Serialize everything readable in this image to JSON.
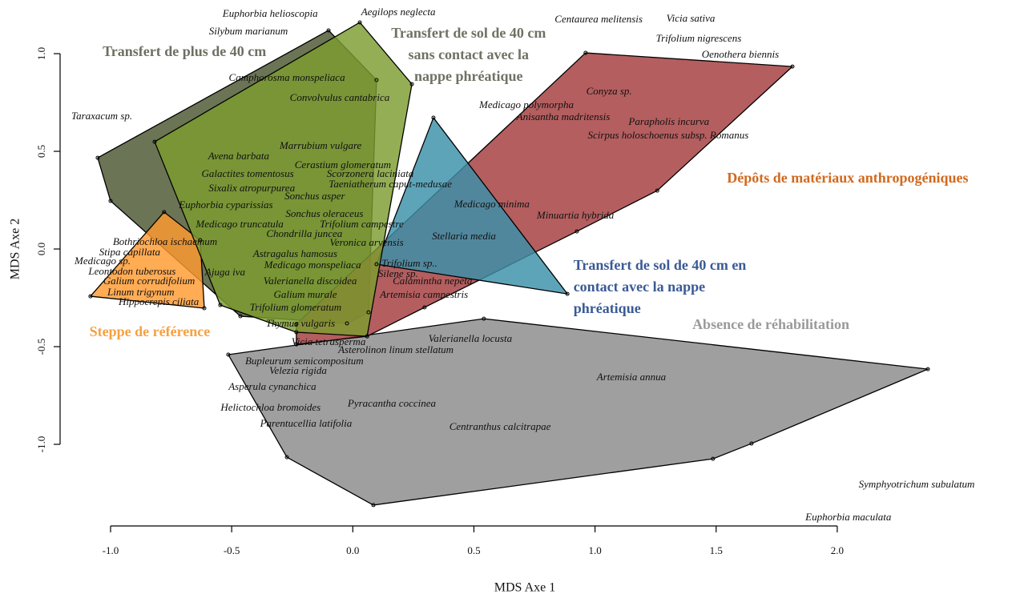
{
  "chart_data": {
    "type": "ordination",
    "x_label": "MDS Axe 1",
    "y_label": "MDS Axe 2",
    "xlim": [
      -1.21,
      2.65
    ],
    "ylim": [
      -1.39,
      1.23
    ],
    "xticks": [
      {
        "value": -1.0,
        "label": "-1.0"
      },
      -0.5,
      {
        "value": 0.0,
        "label": "0.0"
      },
      0.5,
      {
        "value": 1.0,
        "label": "1.0"
      },
      1.5,
      {
        "value": 2.0,
        "label": "2.0"
      }
    ],
    "yticks": [
      {
        "value": -1.0,
        "label": "-1.0"
      },
      -0.5,
      {
        "value": 0.0,
        "label": "0.0"
      },
      0.5,
      {
        "value": 1.0,
        "label": "1.0"
      }
    ],
    "groups": [
      {
        "label": [
          "Absence de réhabilitation"
        ],
        "color": "#8a8a8a",
        "label_color": "#9a9a9a",
        "label_x": 1.726,
        "label_y": -0.393,
        "anchor": "middle",
        "hull_x": [
          -0.514,
          0.541,
          2.374,
          1.646,
          1.487,
          0.085,
          -0.272
        ],
        "hull_y": [
          -0.541,
          -0.357,
          -0.615,
          -0.996,
          -1.074,
          -1.311,
          -1.066
        ]
      },
      {
        "label": [
          "Transfert de plus de 40 cm"
        ],
        "color": "#4a5530",
        "label_color": "#6e6e62",
        "label_x": -0.695,
        "label_y": 1.004,
        "anchor": "middle",
        "hull_x": [
          -1.053,
          -0.1,
          0.098,
          0.065,
          -0.024,
          -0.464,
          -1.0
        ],
        "hull_y": [
          0.467,
          1.119,
          0.865,
          -0.324,
          -0.381,
          -0.344,
          0.246
        ]
      },
      {
        "label": [
          "Steppe de référence"
        ],
        "color": "#ff9a30",
        "label_color": "#f7a040",
        "label_x": -0.838,
        "label_y": -0.43,
        "anchor": "middle",
        "hull_x": [
          -1.083,
          -0.779,
          -0.63,
          -0.613
        ],
        "hull_y": [
          -0.242,
          0.189,
          0.045,
          -0.303
        ]
      },
      {
        "label": [
          "Dépôts de matériaux anthropogéniques"
        ],
        "color": "#a33a3c",
        "label_color": "#d2691e",
        "label_x": 2.043,
        "label_y": 0.357,
        "anchor": "middle",
        "hull_x": [
          0.961,
          1.815,
          1.257,
          0.925,
          0.296,
          0.059,
          -0.233,
          -0.233
        ],
        "hull_y": [
          1.004,
          0.934,
          0.299,
          0.09,
          -0.299,
          -0.447,
          -0.488,
          -0.385
        ]
      },
      {
        "label": [
          "Transfert de sol de 40 cm en",
          "contact avec la nappe",
          "phréatique"
        ],
        "color": "#3b90aa",
        "label_color": "#3a5a95",
        "label_x": 0.911,
        "label_y": -0.09,
        "anchor": "start",
        "hull_x": [
          0.333,
          0.886,
          0.098
        ],
        "hull_y": [
          0.672,
          -0.23,
          -0.078
        ]
      },
      {
        "label": [
          "Transfert de sol de 40 cm",
          "sans contact avec la",
          "nappe phréatique"
        ],
        "color": "#7c9c30",
        "label_color": "#707064",
        "label_x": 0.478,
        "label_y": 1.098,
        "anchor": "middle",
        "hull_x": [
          -0.818,
          0.029,
          0.244,
          0.059,
          -0.233,
          -0.547
        ],
        "hull_y": [
          0.549,
          1.16,
          0.844,
          -0.447,
          -0.426,
          -0.287
        ]
      }
    ],
    "species": [
      {
        "name": "Euphorbia helioscopia",
        "x": -0.341,
        "y": 1.201
      },
      {
        "name": "Aegilops neglecta",
        "x": 0.188,
        "y": 1.209
      },
      {
        "name": "Silybum marianum",
        "x": -0.431,
        "y": 1.111
      },
      {
        "name": "Centaurea melitensis",
        "x": 1.015,
        "y": 1.172
      },
      {
        "name": "Vicia sativa",
        "x": 1.395,
        "y": 1.176
      },
      {
        "name": "Trifolium nigrescens",
        "x": 1.428,
        "y": 1.074
      },
      {
        "name": "Oenothera biennis",
        "x": 1.6,
        "y": 0.992
      },
      {
        "name": "Camphorosma monspeliaca",
        "x": -0.272,
        "y": 0.873
      },
      {
        "name": "Convolvulus cantabrica",
        "x": -0.054,
        "y": 0.77
      },
      {
        "name": "Taraxacum sp.",
        "x": -1.036,
        "y": 0.676
      },
      {
        "name": "Medicago polymorpha",
        "x": 0.717,
        "y": 0.734
      },
      {
        "name": "Conyza sp.",
        "x": 1.058,
        "y": 0.803
      },
      {
        "name": "Anisantha madritensis",
        "x": 0.869,
        "y": 0.672
      },
      {
        "name": "Parapholis incurva",
        "x": 1.305,
        "y": 0.648
      },
      {
        "name": "Marrubium vulgare",
        "x": -0.133,
        "y": 0.525
      },
      {
        "name": "Scirpus holoschoenus subsp. Romanus",
        "x": 1.302,
        "y": 0.578
      },
      {
        "name": "Avena barbata",
        "x": -0.471,
        "y": 0.471
      },
      {
        "name": "Cerastium glomeratum",
        "x": -0.041,
        "y": 0.426
      },
      {
        "name": "Galactites tomentosus",
        "x": -0.434,
        "y": 0.381
      },
      {
        "name": "Scorzonera laciniata",
        "x": 0.072,
        "y": 0.381
      },
      {
        "name": "Taeniatherum caput-medusae",
        "x": 0.155,
        "y": 0.328
      },
      {
        "name": "Sixalix atropurpurea",
        "x": -0.417,
        "y": 0.307
      },
      {
        "name": "Sonchus asper",
        "x": -0.157,
        "y": 0.266
      },
      {
        "name": "Medicago minima",
        "x": 0.574,
        "y": 0.225
      },
      {
        "name": "Euphorbia cyparissias",
        "x": -0.524,
        "y": 0.221
      },
      {
        "name": "Minuartia hybrida",
        "x": 0.919,
        "y": 0.168
      },
      {
        "name": "Sonchus oleraceus",
        "x": -0.117,
        "y": 0.176
      },
      {
        "name": "Medicago truncatula",
        "x": -0.467,
        "y": 0.123
      },
      {
        "name": "Trifolium campestre",
        "x": 0.037,
        "y": 0.123
      },
      {
        "name": "Chondrilla juncea",
        "x": -0.2,
        "y": 0.074
      },
      {
        "name": "Stellaria media",
        "x": 0.459,
        "y": 0.061
      },
      {
        "name": "Bothriochloa ischaemum",
        "x": -0.775,
        "y": 0.033
      },
      {
        "name": "Veronica arvensis",
        "x": 0.057,
        "y": 0.029
      },
      {
        "name": "Stipa capillata",
        "x": -0.921,
        "y": -0.02
      },
      {
        "name": "Medicago sp.",
        "x": -1.033,
        "y": -0.066
      },
      {
        "name": "Astragalus hamosus",
        "x": -0.238,
        "y": -0.029
      },
      {
        "name": "Trifolium sp..",
        "x": 0.234,
        "y": -0.078
      },
      {
        "name": "Medicago monspeliaca",
        "x": -0.166,
        "y": -0.086
      },
      {
        "name": "Leontodon tuberosus",
        "x": -0.911,
        "y": -0.119
      },
      {
        "name": "Ajuga iva",
        "x": -0.527,
        "y": -0.123
      },
      {
        "name": "Valerianella discoidea",
        "x": -0.176,
        "y": -0.168
      },
      {
        "name": "Silene sp.",
        "x": 0.187,
        "y": -0.131
      },
      {
        "name": "Calamintha nepeta",
        "x": 0.329,
        "y": -0.168
      },
      {
        "name": "Galium corrudifolium",
        "x": -0.841,
        "y": -0.168
      },
      {
        "name": "Galium murale",
        "x": -0.196,
        "y": -0.238
      },
      {
        "name": "Linum trigynum",
        "x": -0.875,
        "y": -0.225
      },
      {
        "name": "Artemisia campestris",
        "x": 0.294,
        "y": -0.238
      },
      {
        "name": "Hippocrepis ciliata",
        "x": -0.801,
        "y": -0.275
      },
      {
        "name": "Trifolium glomeratum",
        "x": -0.236,
        "y": -0.303
      },
      {
        "name": "Thymus vulgaris",
        "x": -0.216,
        "y": -0.385
      },
      {
        "name": "Valerianella locusta",
        "x": 0.485,
        "y": -0.463
      },
      {
        "name": "Vicia tetrasperma",
        "x": -0.1,
        "y": -0.48
      },
      {
        "name": "Asterolinon linum stellatum",
        "x": 0.178,
        "y": -0.52
      },
      {
        "name": "Bupleurum semicompositum",
        "x": -0.2,
        "y": -0.578
      },
      {
        "name": "Velezia rigida",
        "x": -0.226,
        "y": -0.627
      },
      {
        "name": "Artemisia annua",
        "x": 1.15,
        "y": -0.66
      },
      {
        "name": "Asperula cynanchica",
        "x": -0.332,
        "y": -0.709
      },
      {
        "name": "Pyracantha coccinea",
        "x": 0.161,
        "y": -0.795
      },
      {
        "name": "Helictochloa bromoides",
        "x": -0.339,
        "y": -0.816
      },
      {
        "name": "Parentucellia latifolia",
        "x": -0.193,
        "y": -0.898
      },
      {
        "name": "Centranthus calcitrapae",
        "x": 0.608,
        "y": -0.914
      },
      {
        "name": "Symphyotrichum subulatum",
        "x": 2.328,
        "y": -1.209
      },
      {
        "name": "Euphorbia maculata",
        "x": 2.046,
        "y": -1.377
      }
    ]
  }
}
